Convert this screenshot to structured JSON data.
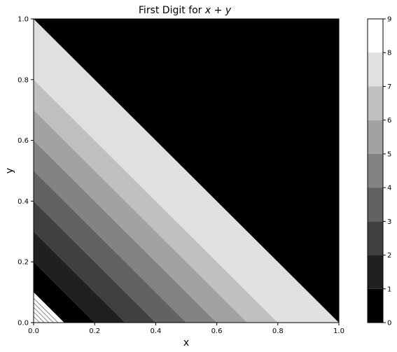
{
  "chart_data": {
    "type": "heatmap",
    "title": "First Digit for",
    "title_math": "x + y",
    "xlabel": "x",
    "ylabel": "y",
    "xlim": [
      0,
      1
    ],
    "ylim": [
      0,
      1
    ],
    "xticks": [
      "0.0",
      "0.2",
      "0.4",
      "0.6",
      "0.8",
      "1.0"
    ],
    "yticks": [
      "0.0",
      "0.2",
      "0.4",
      "0.6",
      "0.8",
      "1.0"
    ],
    "grid": false,
    "colorbar": {
      "levels": [
        0,
        1,
        2,
        3,
        4,
        5,
        6,
        7,
        8,
        9
      ],
      "tick_labels": [
        "0",
        "1",
        "2",
        "3",
        "4",
        "5",
        "6",
        "7",
        "8",
        "9"
      ],
      "colors": [
        "#000000",
        "#202020",
        "#404040",
        "#626262",
        "#838383",
        "#a2a2a2",
        "#c0c0c0",
        "#e0e0e0",
        "#ffffff"
      ]
    },
    "regions": [
      {
        "first_digit": 1,
        "x_plus_y_from": 0.1,
        "x_plus_y_to": 0.2
      },
      {
        "first_digit": 2,
        "x_plus_y_from": 0.2,
        "x_plus_y_to": 0.3
      },
      {
        "first_digit": 3,
        "x_plus_y_from": 0.3,
        "x_plus_y_to": 0.4
      },
      {
        "first_digit": 4,
        "x_plus_y_from": 0.4,
        "x_plus_y_to": 0.5
      },
      {
        "first_digit": 5,
        "x_plus_y_from": 0.5,
        "x_plus_y_to": 0.6
      },
      {
        "first_digit": 6,
        "x_plus_y_from": 0.6,
        "x_plus_y_to": 0.7
      },
      {
        "first_digit": 7,
        "x_plus_y_from": 0.7,
        "x_plus_y_to": 0.8
      },
      {
        "first_digit": 8,
        "x_plus_y_from": 0.8,
        "x_plus_y_to": 1.0
      },
      {
        "first_digit": 1,
        "x_plus_y_from": 1.0,
        "x_plus_y_to": 2.0
      }
    ]
  }
}
